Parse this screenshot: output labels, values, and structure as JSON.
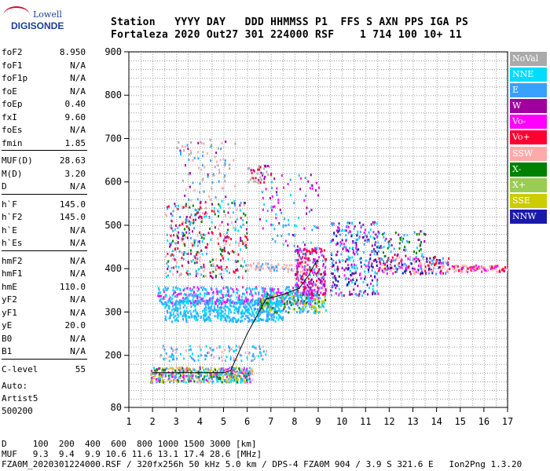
{
  "logo": {
    "line1": "Lowell",
    "line2": "DIGISONDE"
  },
  "header": {
    "names": "Station   YYYY DAY   DDD HHMMSS P1  FFS S AXN PPS IGA PS",
    "values": "Fortaleza 2020 Out27 301 224000 RSF    1 714 100 10+ 11"
  },
  "params": [
    {
      "name": "foF2",
      "value": "8.950"
    },
    {
      "name": "foF1",
      "value": "N/A"
    },
    {
      "name": "foF1p",
      "value": "N/A"
    },
    {
      "name": "foE",
      "value": "N/A"
    },
    {
      "name": "foEp",
      "value": "0.40"
    },
    {
      "name": "fxI",
      "value": "9.60"
    },
    {
      "name": "foEs",
      "value": "N/A"
    },
    {
      "name": "fmin",
      "value": "1.85"
    },
    {
      "name": "MUF(D)",
      "value": "28.63"
    },
    {
      "name": "M(D)",
      "value": "3.20"
    },
    {
      "name": "D",
      "value": "N/A"
    },
    {
      "name": "h`F",
      "value": "145.0"
    },
    {
      "name": "h`F2",
      "value": "145.0"
    },
    {
      "name": "h`E",
      "value": "N/A"
    },
    {
      "name": "h`Es",
      "value": "N/A"
    },
    {
      "name": "hmF2",
      "value": "N/A"
    },
    {
      "name": "hmF1",
      "value": "N/A"
    },
    {
      "name": "hmE",
      "value": "110.0"
    },
    {
      "name": "yF2",
      "value": "N/A"
    },
    {
      "name": "yF1",
      "value": "N/A"
    },
    {
      "name": "yE",
      "value": "20.0"
    },
    {
      "name": "B0",
      "value": "N/A"
    },
    {
      "name": "B1",
      "value": "N/A"
    },
    {
      "name": "C-level",
      "value": "55"
    }
  ],
  "auto": {
    "line1": "Auto:",
    "line2": "Artist5",
    "line3": "500200"
  },
  "legend": [
    {
      "label": "NoVal",
      "color": "#aaaaaa"
    },
    {
      "label": "NNE",
      "color": "#00dcff"
    },
    {
      "label": "E",
      "color": "#3aa0ff"
    },
    {
      "label": "W",
      "color": "#a000a0"
    },
    {
      "label": "Vo-",
      "color": "#ff00ff"
    },
    {
      "label": "Vo+",
      "color": "#ff0033"
    },
    {
      "label": "SSW",
      "color": "#ffaaaa"
    },
    {
      "label": "X-",
      "color": "#008000"
    },
    {
      "label": "X+",
      "color": "#99cc55"
    },
    {
      "label": "SSE",
      "color": "#cccc00"
    },
    {
      "label": "NNW",
      "color": "#1a1aaa"
    }
  ],
  "axes": {
    "y_ticks": [
      "900",
      "800",
      "700",
      "600",
      "500",
      "400",
      "300",
      "200",
      "80"
    ],
    "x_ticks": [
      "1",
      "2",
      "3",
      "4",
      "5",
      "6",
      "7",
      "8",
      "9",
      "10",
      "11",
      "12",
      "13",
      "14",
      "15",
      "16",
      "17"
    ]
  },
  "bottom": {
    "d_line": "D     100  200  400  600  800 1000 1500 3000 [km]",
    "muf_line": "MUF   9.3  9.4  9.9 10.6 11.6 13.1 17.4 28.6 [MHz]",
    "footer": "FZA0M_2020301224000.RSF / 320fx256h 50 kHz 5.0 km / DPS-4 FZA0M 904 / 3.9 S 321.6 E   Ion2Png 1.3.20"
  },
  "chart_data": {
    "type": "scatter",
    "xlim": [
      1,
      17
    ],
    "ylim": [
      80,
      900
    ],
    "grid": true,
    "trace": {
      "x": [
        2.0,
        5.0,
        5.3,
        6.0,
        6.8,
        7.5,
        8.2,
        8.6,
        8.95
      ],
      "y": [
        160,
        160,
        165,
        250,
        330,
        340,
        355,
        385,
        420
      ]
    }
  }
}
